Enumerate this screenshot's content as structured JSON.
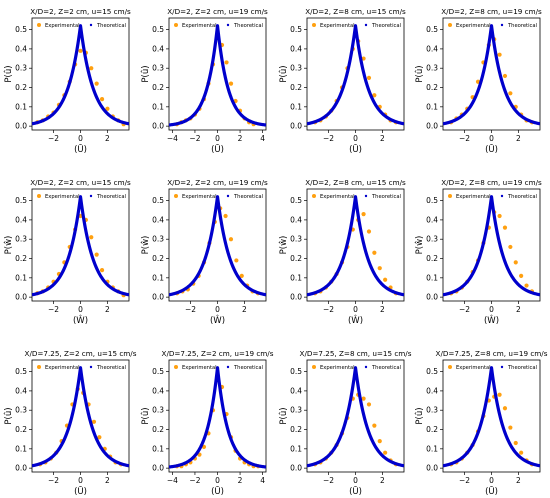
{
  "colors": {
    "experimental": "#ffa010",
    "theoretical": "#0000cc",
    "axis": "#000000"
  },
  "legend": {
    "experimental": "Experimental",
    "theoretical": "Theoretical",
    "placement": "top"
  },
  "chart_data": [
    {
      "type": "scatter",
      "title": "X/D=2, Z=2 cm, u=15 cm/s",
      "ylabel": "P(û)",
      "xlabel": "(Ū)",
      "xlim": [
        -3.6,
        3.6
      ],
      "ylim": [
        -0.02,
        0.56
      ],
      "xticks": [
        -2,
        0,
        2
      ],
      "yticks": [
        0.0,
        0.1,
        0.2,
        0.3,
        0.4,
        0.5
      ],
      "grid": false,
      "series": [
        {
          "name": "Experimental",
          "x": [
            -3.2,
            -2.8,
            -2.4,
            -2.0,
            -1.6,
            -1.2,
            -0.8,
            -0.4,
            0.0,
            0.4,
            0.8,
            1.2,
            1.6,
            2.0,
            2.4,
            2.8,
            3.2
          ],
          "y": [
            0.02,
            0.03,
            0.05,
            0.07,
            0.11,
            0.16,
            0.23,
            0.32,
            0.39,
            0.38,
            0.3,
            0.22,
            0.14,
            0.09,
            0.05,
            0.03,
            0.01
          ]
        },
        {
          "name": "Theoretical",
          "model": "laplace",
          "peak": 0.52,
          "scale": 0.96
        }
      ]
    },
    {
      "type": "scatter",
      "title": "X/D=2, Z=2 cm, u=19 cm/s",
      "ylabel": "P(û)",
      "xlabel": "(Ū)",
      "xlim": [
        -4.3,
        4.3
      ],
      "ylim": [
        -0.02,
        0.56
      ],
      "xticks": [
        -4,
        -2,
        0,
        2,
        4
      ],
      "yticks": [
        0.0,
        0.1,
        0.2,
        0.3,
        0.4,
        0.5
      ],
      "grid": false,
      "series": [
        {
          "name": "Experimental",
          "x": [
            -3.6,
            -3.2,
            -2.8,
            -2.4,
            -2.0,
            -1.6,
            -1.2,
            -0.8,
            -0.4,
            0.0,
            0.4,
            0.8,
            1.2,
            1.6,
            2.0,
            2.4,
            2.8,
            3.2
          ],
          "y": [
            0.01,
            0.02,
            0.03,
            0.04,
            0.06,
            0.09,
            0.14,
            0.22,
            0.32,
            0.49,
            0.42,
            0.33,
            0.22,
            0.13,
            0.08,
            0.04,
            0.02,
            0.01
          ]
        },
        {
          "name": "Theoretical",
          "model": "laplace",
          "peak": 0.52,
          "scale": 0.96
        }
      ]
    },
    {
      "type": "scatter",
      "title": "X/D=2, Z=8 cm, u=15 cm/s",
      "ylabel": "P(û)",
      "xlabel": "(Ū)",
      "xlim": [
        -3.6,
        3.6
      ],
      "ylim": [
        -0.02,
        0.56
      ],
      "xticks": [
        -2,
        0,
        2
      ],
      "yticks": [
        0.0,
        0.1,
        0.2,
        0.3,
        0.4,
        0.5
      ],
      "grid": false,
      "series": [
        {
          "name": "Experimental",
          "x": [
            -3.0,
            -2.6,
            -2.2,
            -1.8,
            -1.4,
            -1.0,
            -0.6,
            -0.2,
            0.2,
            0.6,
            1.0,
            1.4,
            1.8,
            2.2,
            2.6,
            3.0
          ],
          "y": [
            0.02,
            0.03,
            0.05,
            0.08,
            0.13,
            0.2,
            0.3,
            0.4,
            0.44,
            0.35,
            0.25,
            0.16,
            0.1,
            0.06,
            0.03,
            0.02
          ]
        },
        {
          "name": "Theoretical",
          "model": "laplace",
          "peak": 0.52,
          "scale": 0.96
        }
      ]
    },
    {
      "type": "scatter",
      "title": "X/D=2, Z=8 cm, u=19 cm/s",
      "ylabel": "P(û)",
      "xlabel": "(Ū)",
      "xlim": [
        -3.6,
        3.6
      ],
      "ylim": [
        -0.02,
        0.56
      ],
      "xticks": [
        -2,
        0,
        2
      ],
      "yticks": [
        0.0,
        0.1,
        0.2,
        0.3,
        0.4,
        0.5
      ],
      "grid": false,
      "series": [
        {
          "name": "Experimental",
          "x": [
            -3.0,
            -2.6,
            -2.2,
            -1.8,
            -1.4,
            -1.0,
            -0.6,
            -0.2,
            0.2,
            0.6,
            1.0,
            1.4,
            1.8,
            2.2,
            2.6,
            3.0
          ],
          "y": [
            0.02,
            0.04,
            0.06,
            0.09,
            0.15,
            0.23,
            0.33,
            0.42,
            0.45,
            0.37,
            0.26,
            0.17,
            0.1,
            0.06,
            0.03,
            0.02
          ]
        },
        {
          "name": "Theoretical",
          "model": "laplace",
          "peak": 0.52,
          "scale": 0.96
        }
      ]
    },
    {
      "type": "scatter",
      "title": "X/D=2, Z=2 cm, u=15 cm/s",
      "ylabel": "P(ŵ)",
      "xlabel": "(Ŵ)",
      "xlim": [
        -3.6,
        3.6
      ],
      "ylim": [
        -0.02,
        0.56
      ],
      "xticks": [
        -2,
        0,
        2
      ],
      "yticks": [
        0.0,
        0.1,
        0.2,
        0.3,
        0.4,
        0.5
      ],
      "grid": false,
      "series": [
        {
          "name": "Experimental",
          "x": [
            -3.2,
            -2.8,
            -2.4,
            -2.0,
            -1.6,
            -1.2,
            -0.8,
            -0.4,
            0.0,
            0.4,
            0.8,
            1.2,
            1.6,
            2.0,
            2.4,
            2.8,
            3.2
          ],
          "y": [
            0.02,
            0.03,
            0.05,
            0.08,
            0.12,
            0.18,
            0.26,
            0.35,
            0.42,
            0.4,
            0.31,
            0.22,
            0.14,
            0.08,
            0.05,
            0.03,
            0.01
          ]
        },
        {
          "name": "Theoretical",
          "model": "laplace",
          "peak": 0.52,
          "scale": 0.96
        }
      ]
    },
    {
      "type": "scatter",
      "title": "X/D=2, Z=2 cm, u=19 cm/s",
      "ylabel": "P(ŵ)",
      "xlabel": "(Ŵ)",
      "xlim": [
        -3.6,
        3.6
      ],
      "ylim": [
        -0.02,
        0.56
      ],
      "xticks": [
        -2,
        0,
        2
      ],
      "yticks": [
        0.0,
        0.1,
        0.2,
        0.3,
        0.4,
        0.5
      ],
      "grid": false,
      "series": [
        {
          "name": "Experimental",
          "x": [
            -3.0,
            -2.6,
            -2.2,
            -1.8,
            -1.4,
            -1.0,
            -0.6,
            -0.2,
            0.2,
            0.6,
            1.0,
            1.4,
            1.8,
            2.2,
            2.6,
            3.0
          ],
          "y": [
            0.02,
            0.03,
            0.04,
            0.07,
            0.11,
            0.18,
            0.28,
            0.39,
            0.46,
            0.42,
            0.3,
            0.19,
            0.11,
            0.06,
            0.03,
            0.02
          ]
        },
        {
          "name": "Theoretical",
          "model": "laplace",
          "peak": 0.52,
          "scale": 0.96
        }
      ]
    },
    {
      "type": "scatter",
      "title": "X/D=2, Z=8 cm, u=15 cm/s",
      "ylabel": "P(ŵ)",
      "xlabel": "(Ŵ)",
      "xlim": [
        -3.6,
        3.6
      ],
      "ylim": [
        -0.02,
        0.56
      ],
      "xticks": [
        -2,
        0,
        2
      ],
      "yticks": [
        0.0,
        0.1,
        0.2,
        0.3,
        0.4,
        0.5
      ],
      "grid": false,
      "series": [
        {
          "name": "Experimental",
          "x": [
            -3.0,
            -2.6,
            -2.2,
            -1.8,
            -1.4,
            -1.0,
            -0.6,
            -0.2,
            0.2,
            0.6,
            1.0,
            1.4,
            1.8,
            2.2,
            2.6,
            3.0
          ],
          "y": [
            0.02,
            0.03,
            0.05,
            0.08,
            0.12,
            0.18,
            0.26,
            0.35,
            0.4,
            0.43,
            0.34,
            0.23,
            0.15,
            0.09,
            0.05,
            0.02
          ]
        },
        {
          "name": "Theoretical",
          "model": "laplace",
          "peak": 0.52,
          "scale": 0.96
        }
      ]
    },
    {
      "type": "scatter",
      "title": "X/D=2, Z=8 cm, u=19 cm/s",
      "ylabel": "P(ŵ)",
      "xlabel": "(Ŵ)",
      "xlim": [
        -3.6,
        3.6
      ],
      "ylim": [
        -0.02,
        0.56
      ],
      "xticks": [
        -2,
        0,
        2
      ],
      "yticks": [
        0.0,
        0.1,
        0.2,
        0.3,
        0.4,
        0.5
      ],
      "grid": false,
      "series": [
        {
          "name": "Experimental",
          "x": [
            -3.0,
            -2.6,
            -2.2,
            -1.8,
            -1.4,
            -1.0,
            -0.6,
            -0.2,
            0.2,
            0.6,
            1.0,
            1.4,
            1.8,
            2.2,
            2.6,
            3.0
          ],
          "y": [
            0.02,
            0.03,
            0.05,
            0.08,
            0.13,
            0.19,
            0.28,
            0.36,
            0.44,
            0.42,
            0.36,
            0.26,
            0.18,
            0.11,
            0.06,
            0.03
          ]
        },
        {
          "name": "Theoretical",
          "model": "laplace",
          "peak": 0.52,
          "scale": 0.96
        }
      ]
    },
    {
      "type": "scatter",
      "title": "X/D=7.25, Z=2 cm, u=15 cm/s",
      "ylabel": "P(û)",
      "xlabel": "(Ū)",
      "xlim": [
        -3.6,
        3.6
      ],
      "ylim": [
        -0.02,
        0.56
      ],
      "xticks": [
        -2,
        0,
        2
      ],
      "yticks": [
        0.0,
        0.1,
        0.2,
        0.3,
        0.4,
        0.5
      ],
      "grid": false,
      "series": [
        {
          "name": "Experimental",
          "x": [
            -3.0,
            -2.6,
            -2.2,
            -1.8,
            -1.4,
            -1.0,
            -0.6,
            -0.2,
            0.2,
            0.6,
            1.0,
            1.4,
            1.8,
            2.2,
            2.6,
            3.0
          ],
          "y": [
            0.02,
            0.03,
            0.05,
            0.08,
            0.14,
            0.22,
            0.33,
            0.41,
            0.39,
            0.33,
            0.24,
            0.16,
            0.1,
            0.06,
            0.03,
            0.02
          ]
        },
        {
          "name": "Theoretical",
          "model": "laplace",
          "peak": 0.52,
          "scale": 0.96
        }
      ]
    },
    {
      "type": "scatter",
      "title": "X/D=7.25, Z=2 cm, u=19 cm/s",
      "ylabel": "P(û)",
      "xlabel": "(Ū)",
      "xlim": [
        -4.3,
        4.3
      ],
      "ylim": [
        -0.02,
        0.56
      ],
      "xticks": [
        -4,
        -2,
        0,
        2,
        4
      ],
      "yticks": [
        0.0,
        0.1,
        0.2,
        0.3,
        0.4,
        0.5
      ],
      "grid": false,
      "series": [
        {
          "name": "Experimental",
          "x": [
            -3.6,
            -3.2,
            -2.8,
            -2.4,
            -2.0,
            -1.6,
            -1.2,
            -0.8,
            -0.4,
            0.0,
            0.4,
            0.8,
            1.2,
            1.6,
            2.0,
            2.4,
            2.8,
            3.2,
            3.6
          ],
          "y": [
            0.01,
            0.01,
            0.02,
            0.03,
            0.05,
            0.07,
            0.11,
            0.18,
            0.3,
            0.46,
            0.42,
            0.28,
            0.16,
            0.09,
            0.05,
            0.03,
            0.02,
            0.01,
            0.01
          ]
        },
        {
          "name": "Theoretical",
          "model": "laplace",
          "peak": 0.52,
          "scale": 0.96
        }
      ]
    },
    {
      "type": "scatter",
      "title": "X/D=7.25, Z=8 cm, u=15 cm/s",
      "ylabel": "P(û)",
      "xlabel": "(Ū)",
      "xlim": [
        -3.6,
        3.6
      ],
      "ylim": [
        -0.02,
        0.56
      ],
      "xticks": [
        -2,
        0,
        2
      ],
      "yticks": [
        0.0,
        0.1,
        0.2,
        0.3,
        0.4,
        0.5
      ],
      "grid": false,
      "series": [
        {
          "name": "Experimental",
          "x": [
            -3.0,
            -2.6,
            -2.2,
            -1.8,
            -1.4,
            -1.0,
            -0.6,
            -0.2,
            0.2,
            0.6,
            1.0,
            1.4,
            1.8,
            2.2,
            2.6,
            3.0
          ],
          "y": [
            0.02,
            0.03,
            0.05,
            0.08,
            0.12,
            0.18,
            0.26,
            0.36,
            0.38,
            0.36,
            0.33,
            0.22,
            0.14,
            0.08,
            0.04,
            0.02
          ]
        },
        {
          "name": "Theoretical",
          "model": "laplace",
          "peak": 0.52,
          "scale": 0.96
        }
      ]
    },
    {
      "type": "scatter",
      "title": "X/D=7.25, Z=8 cm, u=19 cm/s",
      "ylabel": "P(û)",
      "xlabel": "(Ū)",
      "xlim": [
        -3.6,
        3.6
      ],
      "ylim": [
        -0.02,
        0.56
      ],
      "xticks": [
        -2,
        0,
        2
      ],
      "yticks": [
        0.0,
        0.1,
        0.2,
        0.3,
        0.4,
        0.5
      ],
      "grid": false,
      "series": [
        {
          "name": "Experimental",
          "x": [
            -3.0,
            -2.6,
            -2.2,
            -1.8,
            -1.4,
            -1.0,
            -0.6,
            -0.2,
            0.2,
            0.6,
            1.0,
            1.4,
            1.8,
            2.2,
            2.6,
            3.0
          ],
          "y": [
            0.02,
            0.03,
            0.05,
            0.08,
            0.12,
            0.19,
            0.27,
            0.35,
            0.37,
            0.38,
            0.31,
            0.21,
            0.13,
            0.08,
            0.04,
            0.02
          ]
        },
        {
          "name": "Theoretical",
          "model": "laplace",
          "peak": 0.52,
          "scale": 0.96
        }
      ]
    }
  ]
}
